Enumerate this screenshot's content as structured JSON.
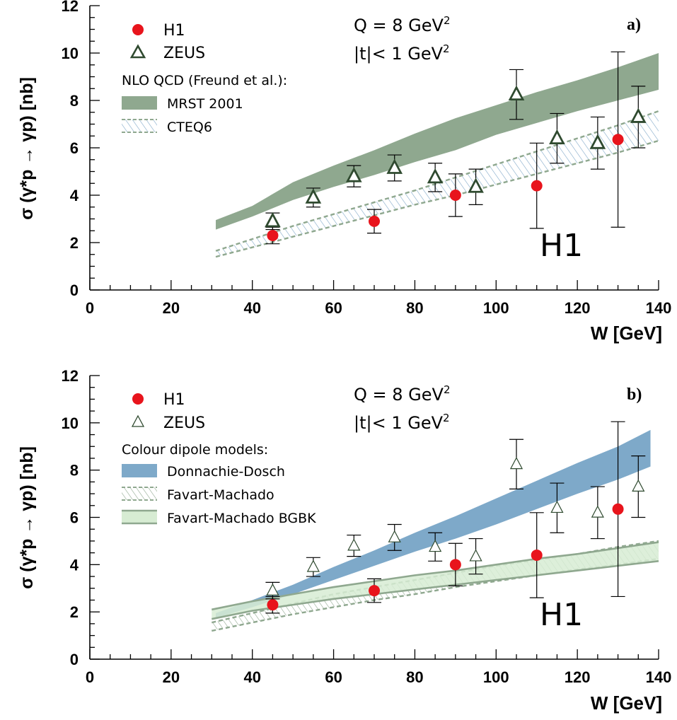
{
  "chart_data": [
    {
      "type": "scatter",
      "panel_label": "a)",
      "xlabel": "W [GeV]",
      "ylabel": "σ (γ*p → γp)  [nb]",
      "xlim": [
        0,
        140
      ],
      "ylim": [
        0,
        12
      ],
      "x_ticks": [
        0,
        20,
        40,
        60,
        80,
        100,
        120,
        140
      ],
      "y_ticks": [
        0,
        2,
        4,
        6,
        8,
        10,
        12
      ],
      "watermark": "H1",
      "annotations": [
        {
          "text": "Q = 8 GeV",
          "sup": "2"
        },
        {
          "text": "|t|< 1 GeV",
          "sup": "2"
        }
      ],
      "legend": [
        "H1",
        "ZEUS",
        "MRST 2001",
        "CTEQ6"
      ],
      "legend_header": "NLO QCD (Freund et al.):",
      "series": [
        {
          "name": "H1",
          "marker": "circle",
          "color": "#e8141c",
          "points": [
            {
              "x": 45,
              "y": 2.3,
              "err": 0.35
            },
            {
              "x": 70,
              "y": 2.9,
              "err": 0.5
            },
            {
              "x": 90,
              "y": 4.0,
              "err": 0.9
            },
            {
              "x": 110,
              "y": 4.4,
              "err": 1.8
            },
            {
              "x": 130,
              "y": 6.35,
              "err": 3.7
            }
          ]
        },
        {
          "name": "ZEUS",
          "marker": "triangle",
          "color": "#2f4a2f",
          "points": [
            {
              "x": 45,
              "y": 2.9,
              "err": 0.35
            },
            {
              "x": 55,
              "y": 3.9,
              "err": 0.4
            },
            {
              "x": 65,
              "y": 4.8,
              "err": 0.45
            },
            {
              "x": 75,
              "y": 5.15,
              "err": 0.55
            },
            {
              "x": 85,
              "y": 4.75,
              "err": 0.6
            },
            {
              "x": 95,
              "y": 4.35,
              "err": 0.75
            },
            {
              "x": 105,
              "y": 8.25,
              "err": 1.05
            },
            {
              "x": 115,
              "y": 6.4,
              "err": 1.05
            },
            {
              "x": 125,
              "y": 6.2,
              "err": 1.1
            },
            {
              "x": 135,
              "y": 7.3,
              "err": 1.3
            }
          ]
        }
      ],
      "bands": [
        {
          "name": "MRST 2001",
          "style": "solid",
          "color": "#8fa88f",
          "x": [
            31,
            40,
            50,
            60,
            70,
            80,
            90,
            100,
            110,
            120,
            130,
            140
          ],
          "lower": [
            2.55,
            3.1,
            3.8,
            4.35,
            4.85,
            5.4,
            5.9,
            6.55,
            7.05,
            7.55,
            8.0,
            8.45
          ],
          "upper": [
            2.95,
            3.55,
            4.55,
            5.25,
            5.9,
            6.6,
            7.25,
            7.8,
            8.35,
            8.85,
            9.4,
            10.0
          ]
        },
        {
          "name": "CTEQ6",
          "style": "hatched",
          "color": "#7fa7c8",
          "x": [
            31,
            40,
            50,
            60,
            70,
            80,
            90,
            100,
            110,
            120,
            130,
            140
          ],
          "lower": [
            1.4,
            1.8,
            2.25,
            2.7,
            3.15,
            3.6,
            4.0,
            4.45,
            4.9,
            5.35,
            5.8,
            6.3
          ],
          "upper": [
            1.65,
            2.15,
            2.7,
            3.2,
            3.7,
            4.2,
            4.75,
            5.3,
            5.85,
            6.4,
            6.95,
            7.55
          ]
        }
      ]
    },
    {
      "type": "scatter",
      "panel_label": "b)",
      "xlabel": "W [GeV]",
      "ylabel": "σ (γ*p → γp)  [nb]",
      "xlim": [
        0,
        140
      ],
      "ylim": [
        0,
        12
      ],
      "x_ticks": [
        0,
        20,
        40,
        60,
        80,
        100,
        120,
        140
      ],
      "y_ticks": [
        0,
        2,
        4,
        6,
        8,
        10,
        12
      ],
      "watermark": "H1",
      "annotations": [
        {
          "text": "Q = 8 GeV",
          "sup": "2"
        },
        {
          "text": "|t|< 1 GeV",
          "sup": "2"
        }
      ],
      "legend": [
        "H1",
        "ZEUS",
        "Donnachie-Dosch",
        "Favart-Machado",
        "Favart-Machado BGBK"
      ],
      "legend_header": "Colour dipole models:",
      "series": [
        {
          "name": "H1",
          "marker": "circle",
          "color": "#e8141c",
          "points": [
            {
              "x": 45,
              "y": 2.3,
              "err": 0.35
            },
            {
              "x": 70,
              "y": 2.9,
              "err": 0.5
            },
            {
              "x": 90,
              "y": 4.0,
              "err": 0.9
            },
            {
              "x": 110,
              "y": 4.4,
              "err": 1.8
            },
            {
              "x": 130,
              "y": 6.35,
              "err": 3.7
            }
          ]
        },
        {
          "name": "ZEUS",
          "marker": "triangle",
          "color": "#2f4a2f",
          "points": [
            {
              "x": 45,
              "y": 2.9,
              "err": 0.35
            },
            {
              "x": 55,
              "y": 3.9,
              "err": 0.4
            },
            {
              "x": 65,
              "y": 4.8,
              "err": 0.45
            },
            {
              "x": 75,
              "y": 5.15,
              "err": 0.55
            },
            {
              "x": 85,
              "y": 4.75,
              "err": 0.6
            },
            {
              "x": 95,
              "y": 4.35,
              "err": 0.75
            },
            {
              "x": 105,
              "y": 8.25,
              "err": 1.05
            },
            {
              "x": 115,
              "y": 6.4,
              "err": 1.05
            },
            {
              "x": 125,
              "y": 6.2,
              "err": 1.1
            },
            {
              "x": 135,
              "y": 7.3,
              "err": 1.3
            }
          ]
        }
      ],
      "bands": [
        {
          "name": "Donnachie-Dosch",
          "style": "solid",
          "color": "#7ea9c9",
          "x": [
            31,
            40,
            50,
            60,
            70,
            80,
            90,
            100,
            110,
            120,
            130,
            138
          ],
          "lower": [
            1.75,
            2.2,
            2.75,
            3.35,
            3.95,
            4.55,
            5.1,
            5.7,
            6.35,
            7.0,
            7.6,
            8.15
          ],
          "upper": [
            1.95,
            2.5,
            3.15,
            3.9,
            4.6,
            5.35,
            6.05,
            6.8,
            7.55,
            8.3,
            9.0,
            9.7
          ]
        },
        {
          "name": "Favart-Machado",
          "style": "hatched",
          "color": "#8fa88f",
          "x": [
            30,
            40,
            50,
            60,
            70,
            80,
            90,
            100,
            110,
            120,
            130,
            140
          ],
          "lower": [
            1.2,
            1.55,
            1.9,
            2.2,
            2.5,
            2.75,
            3.05,
            3.3,
            3.55,
            3.8,
            4.0,
            4.25
          ],
          "upper": [
            1.55,
            1.95,
            2.35,
            2.75,
            3.05,
            3.35,
            3.65,
            3.95,
            4.2,
            4.45,
            4.75,
            5.0
          ]
        },
        {
          "name": "Favart-Machado BGBK",
          "style": "light",
          "color": "#d7ecd3",
          "x": [
            30,
            40,
            50,
            60,
            70,
            80,
            90,
            100,
            110,
            120,
            130,
            140
          ],
          "lower": [
            1.7,
            2.05,
            2.3,
            2.55,
            2.75,
            2.95,
            3.15,
            3.35,
            3.55,
            3.75,
            3.95,
            4.15
          ],
          "upper": [
            2.1,
            2.45,
            2.75,
            3.05,
            3.3,
            3.55,
            3.75,
            4.0,
            4.25,
            4.45,
            4.7,
            4.95
          ]
        }
      ]
    }
  ]
}
